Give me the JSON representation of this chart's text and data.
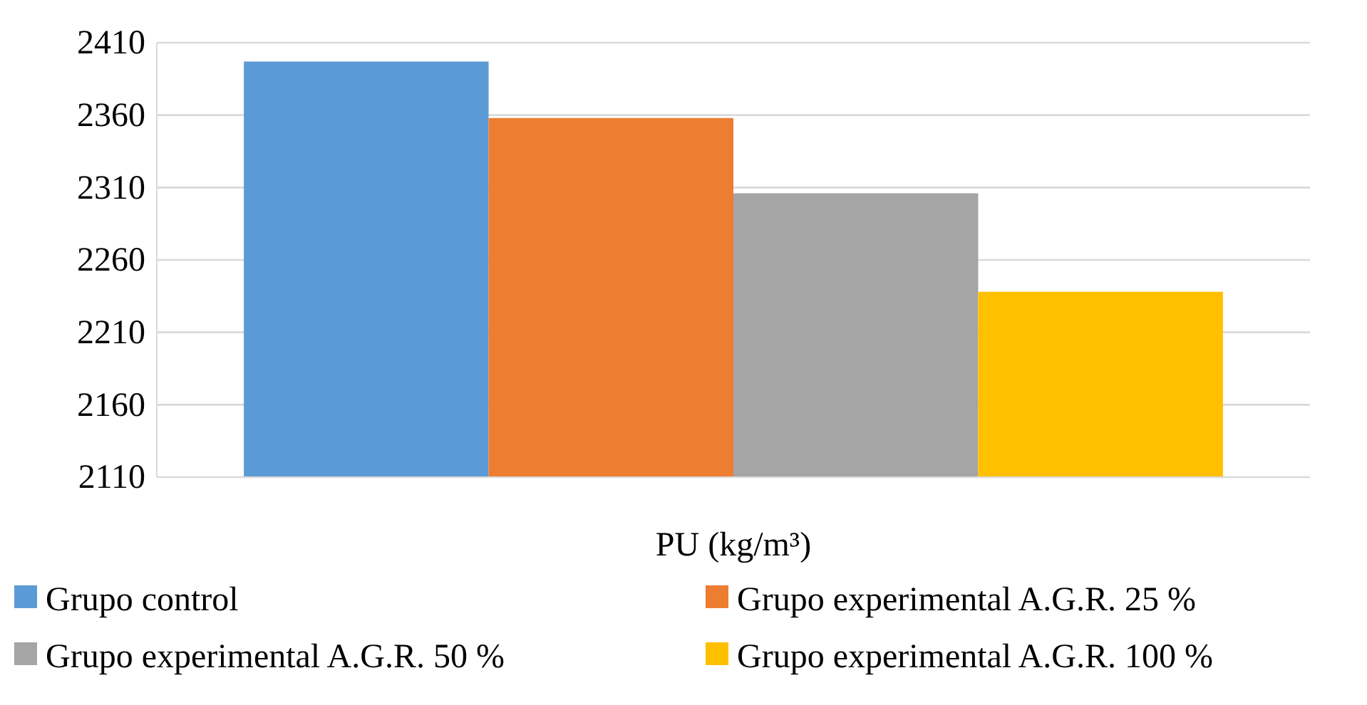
{
  "chart_data": {
    "type": "bar",
    "categories": [
      "PU (kg/m³)"
    ],
    "series": [
      {
        "name": "Grupo control",
        "color": "#5b9bd5",
        "values": [
          2397
        ]
      },
      {
        "name": "Grupo experimental A.G.R. 25 %",
        "color": "#ed7d31",
        "values": [
          2358
        ]
      },
      {
        "name": "Grupo experimental A.G.R. 50 %",
        "color": "#a5a5a5",
        "values": [
          2306
        ]
      },
      {
        "name": "Grupo experimental A.G.R. 100 %",
        "color": "#ffc000",
        "values": [
          2238
        ]
      }
    ],
    "ylim": [
      2110,
      2410
    ],
    "yticks": [
      2110,
      2160,
      2210,
      2260,
      2310,
      2360,
      2410
    ],
    "grid": "y",
    "legend": "bottom"
  }
}
